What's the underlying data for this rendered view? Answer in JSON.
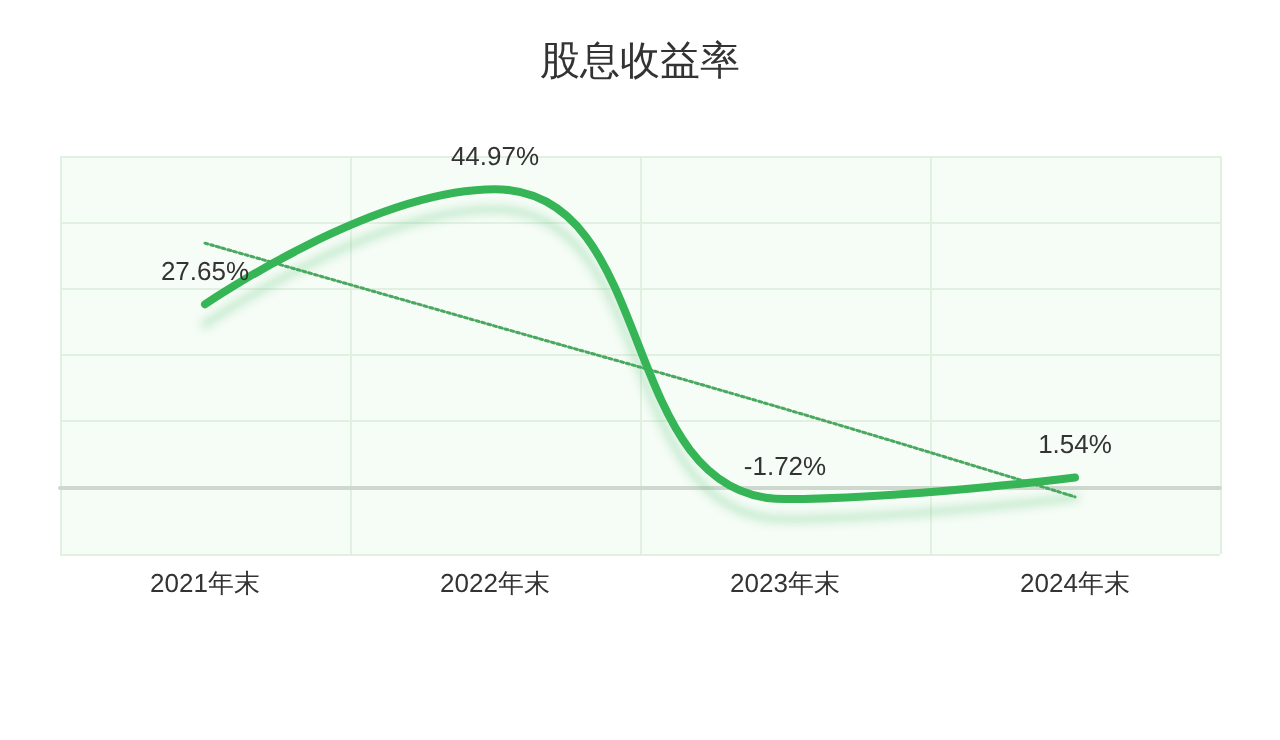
{
  "chart_data": {
    "type": "line",
    "title": "股息收益率",
    "categories": [
      "2021年末",
      "2022年末",
      "2023年末",
      "2024年末"
    ],
    "grid": true,
    "marker": "none",
    "series": [
      {
        "color": "#35b556",
        "values": [
          27.65,
          44.97,
          -1.72,
          1.54
        ],
        "value_labels": [
          "27.65%",
          "44.97%",
          "-1.72%",
          "1.54%"
        ],
        "line_style": "solid"
      },
      {
        "color": "#4aa860",
        "values": [
          36.86,
          24.36,
          11.86,
          -1.39
        ],
        "line_style": "dotted"
      }
    ]
  }
}
